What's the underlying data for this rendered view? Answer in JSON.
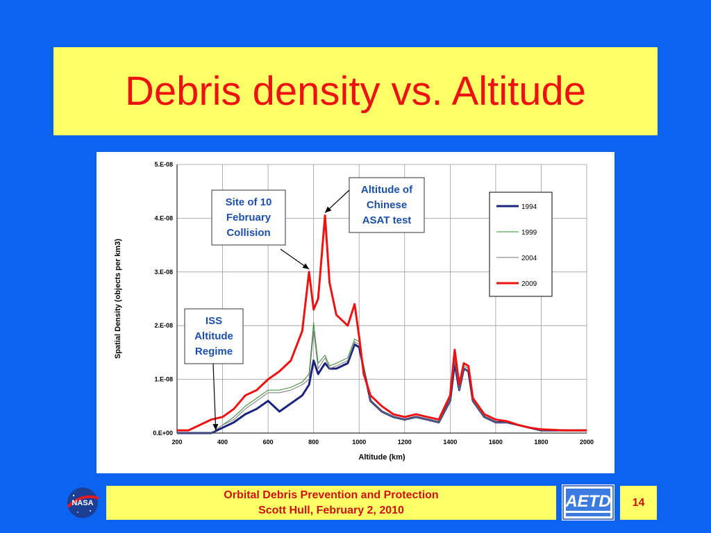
{
  "slide": {
    "title": "Debris density vs. Altitude",
    "footer_line1": "Orbital Debris Prevention and Protection",
    "footer_line2": "Scott Hull, February 2, 2010",
    "page_number": "14",
    "logo_left_text": "NASA",
    "logo_right_text": "AETD",
    "colors": {
      "background": "#0b63f0",
      "panel": "#ffff66",
      "title_text": "#ee1111"
    }
  },
  "chart_data": {
    "type": "line",
    "xlabel": "Altitude  (km)",
    "ylabel": "Spatial Density  (objects per km3)",
    "xlim": [
      200,
      2000
    ],
    "ylim": [
      0,
      5e-08
    ],
    "x_ticks": [
      200,
      400,
      600,
      800,
      1000,
      1200,
      1400,
      1600,
      1800,
      2000
    ],
    "y_ticks": [
      0,
      1e-08,
      2e-08,
      3e-08,
      4e-08,
      5e-08
    ],
    "y_tick_labels": [
      "0.E+00",
      "1.E-08",
      "2.E-08",
      "3.E-08",
      "4.E-08",
      "5.E-08"
    ],
    "grid": true,
    "legend_position": "top-right",
    "x": [
      200,
      250,
      300,
      350,
      400,
      450,
      500,
      550,
      600,
      650,
      700,
      750,
      780,
      800,
      820,
      850,
      870,
      900,
      950,
      980,
      1000,
      1020,
      1050,
      1100,
      1150,
      1200,
      1250,
      1300,
      1350,
      1400,
      1420,
      1440,
      1460,
      1480,
      1500,
      1550,
      1600,
      1650,
      1700,
      1750,
      1800,
      1900,
      2000
    ],
    "series": [
      {
        "name": "1994",
        "color": "#1a237e",
        "width": 3,
        "values": [
          0.0,
          0.0,
          0.0,
          0.0,
          0.1,
          0.2,
          0.35,
          0.45,
          0.6,
          0.4,
          0.55,
          0.7,
          0.9,
          1.35,
          1.1,
          1.3,
          1.2,
          1.2,
          1.3,
          1.65,
          1.6,
          1.2,
          0.6,
          0.4,
          0.3,
          0.25,
          0.3,
          0.25,
          0.2,
          0.6,
          1.3,
          0.8,
          1.2,
          1.15,
          0.6,
          0.3,
          0.2,
          0.2,
          0.15,
          0.1,
          0.05,
          0.05,
          0.05
        ]
      },
      {
        "name": "1999",
        "color": "#2e8b2e",
        "width": 1,
        "values": [
          0.0,
          0.0,
          0.0,
          0.0,
          0.15,
          0.3,
          0.5,
          0.65,
          0.8,
          0.8,
          0.85,
          0.95,
          1.1,
          2.05,
          1.3,
          1.45,
          1.25,
          1.3,
          1.4,
          1.75,
          1.7,
          1.25,
          0.6,
          0.4,
          0.3,
          0.25,
          0.3,
          0.25,
          0.2,
          0.6,
          1.4,
          0.8,
          1.25,
          1.2,
          0.6,
          0.3,
          0.2,
          0.2,
          0.15,
          0.1,
          0.05,
          0.05,
          0.05
        ]
      },
      {
        "name": "2004",
        "color": "#777777",
        "width": 1,
        "values": [
          0.0,
          0.0,
          0.0,
          0.0,
          0.15,
          0.25,
          0.45,
          0.6,
          0.75,
          0.75,
          0.8,
          0.9,
          1.0,
          1.9,
          1.2,
          1.4,
          1.2,
          1.25,
          1.35,
          1.7,
          1.65,
          1.2,
          0.6,
          0.4,
          0.3,
          0.25,
          0.3,
          0.25,
          0.2,
          0.6,
          1.35,
          0.8,
          1.2,
          1.15,
          0.6,
          0.3,
          0.2,
          0.2,
          0.15,
          0.1,
          0.05,
          0.05,
          0.05
        ]
      },
      {
        "name": "2009",
        "color": "#ee1111",
        "width": 3,
        "values": [
          0.05,
          0.05,
          0.15,
          0.25,
          0.3,
          0.45,
          0.7,
          0.8,
          1.0,
          1.15,
          1.35,
          1.9,
          3.0,
          2.3,
          2.5,
          4.05,
          2.8,
          2.2,
          2.0,
          2.4,
          1.8,
          1.1,
          0.7,
          0.5,
          0.35,
          0.3,
          0.35,
          0.3,
          0.25,
          0.7,
          1.55,
          0.9,
          1.3,
          1.25,
          0.65,
          0.35,
          0.25,
          0.22,
          0.15,
          0.1,
          0.07,
          0.05,
          0.05
        ]
      }
    ],
    "values_scale": "1.E-08",
    "annotations": [
      {
        "id": "feb-collision",
        "lines": [
          "Site of 10",
          "February",
          "Collision"
        ],
        "x": 780,
        "y": 3e-08
      },
      {
        "id": "asat-test",
        "lines": [
          "Altitude of",
          "Chinese",
          "ASAT test"
        ],
        "x": 850,
        "y": 4.05e-08
      },
      {
        "id": "iss-regime",
        "lines": [
          "ISS",
          "Altitude",
          "Regime"
        ],
        "x": 370,
        "y": 0.0
      }
    ]
  }
}
